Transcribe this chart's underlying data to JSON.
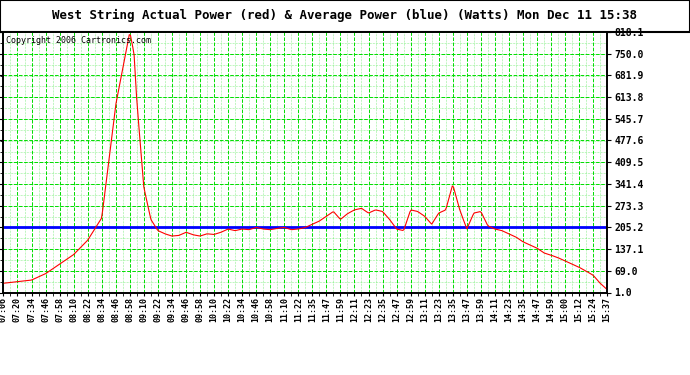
{
  "title": "West String Actual Power (red) & Average Power (blue) (Watts) Mon Dec 11 15:38",
  "copyright": "Copyright 2006 Cartronics.com",
  "yticks": [
    1.0,
    69.0,
    137.1,
    205.2,
    273.3,
    341.4,
    409.5,
    477.6,
    545.7,
    613.8,
    681.9,
    750.0,
    818.1
  ],
  "ymin": 1.0,
  "ymax": 818.1,
  "average_power": 205.2,
  "avg_color": "#0000ff",
  "actual_color": "#ff0000",
  "bg_color": "#ffffff",
  "grid_color": "#00dd00",
  "border_color": "#000000",
  "xtick_labels": [
    "07:06",
    "07:20",
    "07:34",
    "07:46",
    "07:58",
    "08:10",
    "08:22",
    "08:34",
    "08:46",
    "08:58",
    "09:10",
    "09:22",
    "09:34",
    "09:46",
    "09:58",
    "10:10",
    "10:22",
    "10:34",
    "10:46",
    "10:58",
    "11:10",
    "11:22",
    "11:35",
    "11:47",
    "11:59",
    "12:11",
    "12:23",
    "12:35",
    "12:47",
    "12:59",
    "13:11",
    "13:23",
    "13:35",
    "13:47",
    "13:59",
    "14:11",
    "14:23",
    "14:35",
    "14:47",
    "14:59",
    "15:00",
    "15:12",
    "15:24",
    "15:37"
  ],
  "power_data": [
    30.0,
    35.0,
    40.0,
    60.0,
    90.0,
    120.0,
    160.0,
    230.0,
    570.0,
    818.0,
    560.0,
    185.0,
    175.0,
    180.0,
    178.0,
    185.0,
    195.0,
    195.0,
    210.0,
    205.0,
    198.0,
    195.0,
    215.0,
    240.0,
    255.0,
    230.0,
    260.0,
    265.0,
    195.0,
    255.0,
    245.0,
    215.0,
    260.0,
    340.0,
    200.0,
    195.0,
    180.0,
    160.0,
    130.0,
    120.0,
    105.0,
    85.0,
    60.0,
    10.0
  ],
  "title_fontsize": 9,
  "copyright_fontsize": 6,
  "tick_fontsize": 6
}
